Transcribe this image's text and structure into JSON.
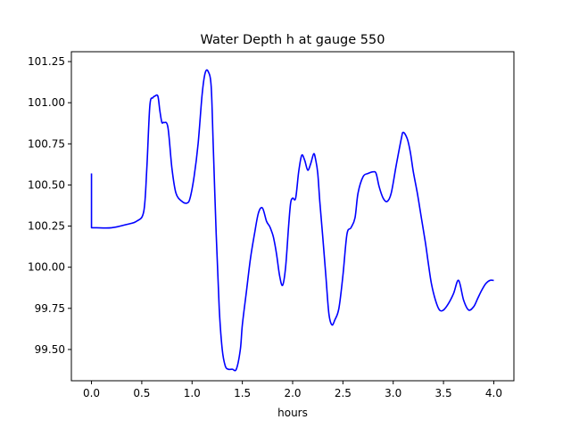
{
  "chart_data": {
    "type": "line",
    "title": "Water Depth h at gauge 550",
    "xlabel": "hours",
    "ylabel": "",
    "xlim": [
      -0.2,
      4.2
    ],
    "ylim": [
      99.31,
      101.31
    ],
    "grid": false,
    "xticks": [
      0.0,
      0.5,
      1.0,
      1.5,
      2.0,
      2.5,
      3.0,
      3.5,
      4.0
    ],
    "xtick_labels": [
      "0.0",
      "0.5",
      "1.0",
      "1.5",
      "2.0",
      "2.5",
      "3.0",
      "3.5",
      "4.0"
    ],
    "yticks": [
      99.5,
      99.75,
      100.0,
      100.25,
      100.5,
      100.75,
      101.0,
      101.25
    ],
    "ytick_labels": [
      "99.50",
      "99.75",
      "100.00",
      "100.25",
      "100.50",
      "100.75",
      "101.00",
      "101.25"
    ],
    "series": [
      {
        "color": "#0000ff",
        "x": [
          0.0,
          0.0,
          0.05,
          0.2,
          0.35,
          0.45,
          0.52,
          0.55,
          0.58,
          0.61,
          0.63,
          0.66,
          0.68,
          0.7,
          0.72,
          0.76,
          0.8,
          0.84,
          0.9,
          0.95,
          0.98,
          1.02,
          1.06,
          1.1,
          1.13,
          1.16,
          1.19,
          1.21,
          1.24,
          1.27,
          1.3,
          1.33,
          1.36,
          1.4,
          1.44,
          1.48,
          1.5,
          1.54,
          1.58,
          1.62,
          1.66,
          1.7,
          1.74,
          1.77,
          1.79,
          1.81,
          1.84,
          1.87,
          1.9,
          1.93,
          1.96,
          1.98,
          2.0,
          2.03,
          2.06,
          2.09,
          2.12,
          2.15,
          2.18,
          2.21,
          2.23,
          2.25,
          2.27,
          2.3,
          2.33,
          2.36,
          2.39,
          2.42,
          2.46,
          2.5,
          2.54,
          2.58,
          2.62,
          2.65,
          2.7,
          2.75,
          2.8,
          2.83,
          2.86,
          2.9,
          2.94,
          2.98,
          3.03,
          3.08,
          3.1,
          3.14,
          3.17,
          3.2,
          3.24,
          3.28,
          3.32,
          3.35,
          3.38,
          3.42,
          3.46,
          3.5,
          3.55,
          3.6,
          3.65,
          3.7,
          3.75,
          3.8,
          3.84,
          3.88,
          3.92,
          3.96,
          4.0
        ],
        "values": [
          100.57,
          100.24,
          100.24,
          100.24,
          100.26,
          100.28,
          100.34,
          100.6,
          100.98,
          101.03,
          101.04,
          101.04,
          100.95,
          100.88,
          100.88,
          100.85,
          100.6,
          100.45,
          100.4,
          100.39,
          100.42,
          100.55,
          100.75,
          101.05,
          101.18,
          101.19,
          101.1,
          100.75,
          100.2,
          99.75,
          99.5,
          99.4,
          99.38,
          99.38,
          99.38,
          99.5,
          99.65,
          99.85,
          100.05,
          100.2,
          100.33,
          100.36,
          100.28,
          100.25,
          100.22,
          100.18,
          100.08,
          99.95,
          99.89,
          100.0,
          100.25,
          100.39,
          100.42,
          100.42,
          100.58,
          100.68,
          100.65,
          100.59,
          100.63,
          100.69,
          100.65,
          100.57,
          100.4,
          100.18,
          99.95,
          99.72,
          99.65,
          99.68,
          99.75,
          99.95,
          100.2,
          100.24,
          100.3,
          100.45,
          100.55,
          100.57,
          100.58,
          100.57,
          100.49,
          100.42,
          100.4,
          100.45,
          100.62,
          100.78,
          100.82,
          100.78,
          100.7,
          100.58,
          100.45,
          100.3,
          100.15,
          100.02,
          99.9,
          99.8,
          99.74,
          99.74,
          99.78,
          99.84,
          99.92,
          99.8,
          99.74,
          99.76,
          99.81,
          99.86,
          99.9,
          99.92,
          99.92
        ]
      }
    ]
  }
}
